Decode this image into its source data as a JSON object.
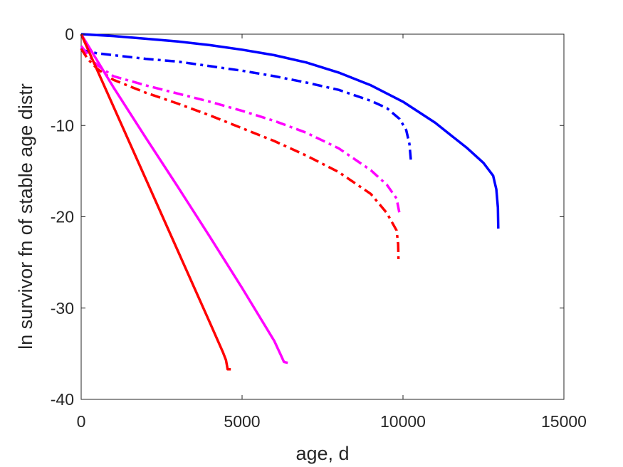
{
  "chart_data": {
    "type": "line",
    "title": "",
    "xlabel": "age, d",
    "ylabel": "ln survivor fn of stable age distr",
    "xlim": [
      0,
      15000
    ],
    "ylim": [
      -40,
      0
    ],
    "xticks": [
      0,
      5000,
      10000,
      15000
    ],
    "xtick_labels": [
      "0",
      "5000",
      "10000",
      "15000"
    ],
    "yticks": [
      0,
      -10,
      -20,
      -30,
      -40
    ],
    "ytick_labels": [
      "0",
      "-10",
      "-20",
      "-30",
      "-40"
    ],
    "grid": false,
    "legend": "none",
    "series": [
      {
        "color": "#0000ff",
        "dash": "solid",
        "x": [
          0,
          1000,
          2000,
          3000,
          4000,
          5000,
          6000,
          7000,
          8000,
          9000,
          10000,
          11000,
          12000,
          12500,
          12800,
          12900,
          12950,
          12960
        ],
        "y": [
          0,
          -0.2,
          -0.5,
          -0.8,
          -1.2,
          -1.7,
          -2.3,
          -3.1,
          -4.2,
          -5.6,
          -7.4,
          -9.7,
          -12.5,
          -14.1,
          -15.5,
          -17.0,
          -19.0,
          -21.3
        ]
      },
      {
        "color": "#0000ff",
        "dash": "dashdot",
        "x": [
          0,
          100,
          500,
          1000,
          2000,
          3000,
          4000,
          5000,
          6000,
          7000,
          8000,
          9000,
          9500,
          9900,
          10100,
          10200,
          10250
        ],
        "y": [
          -1.5,
          -1.8,
          -2.1,
          -2.3,
          -2.7,
          -3.0,
          -3.5,
          -4.0,
          -4.6,
          -5.3,
          -6.1,
          -7.3,
          -8.1,
          -9.3,
          -10.5,
          -12.0,
          -14.0
        ]
      },
      {
        "color": "#ff00ff",
        "dash": "dashdot",
        "x": [
          0,
          200,
          500,
          1000,
          2000,
          3000,
          4000,
          5000,
          6000,
          7000,
          8000,
          9000,
          9500,
          9800,
          9900
        ],
        "y": [
          -1.3,
          -2.2,
          -3.4,
          -4.6,
          -5.6,
          -6.5,
          -7.4,
          -8.4,
          -9.5,
          -10.8,
          -12.5,
          -14.9,
          -16.5,
          -18.0,
          -19.8
        ]
      },
      {
        "color": "#ff0000",
        "dash": "dashdot",
        "x": [
          0,
          200,
          500,
          1000,
          2000,
          3000,
          4000,
          5000,
          6000,
          7000,
          8000,
          9000,
          9500,
          9800,
          9850,
          9860
        ],
        "y": [
          -1.6,
          -2.7,
          -3.8,
          -5.0,
          -6.4,
          -7.6,
          -8.9,
          -10.3,
          -11.7,
          -13.3,
          -15.1,
          -17.5,
          -19.6,
          -21.5,
          -23.0,
          -24.8
        ]
      },
      {
        "color": "#ff00ff",
        "dash": "solid",
        "x": [
          0,
          1000,
          2000,
          3000,
          4000,
          5000,
          6000,
          6200,
          6300,
          6420
        ],
        "y": [
          0,
          -5.8,
          -11.3,
          -16.7,
          -22.2,
          -27.8,
          -33.6,
          -35.1,
          -35.9,
          -36.0
        ]
      },
      {
        "color": "#ff0000",
        "dash": "solid",
        "x": [
          0,
          1000,
          2000,
          3000,
          4000,
          4400,
          4500,
          4550,
          4650
        ],
        "y": [
          0,
          -7.9,
          -15.8,
          -23.7,
          -31.6,
          -34.8,
          -35.7,
          -36.7,
          -36.7
        ]
      }
    ]
  }
}
